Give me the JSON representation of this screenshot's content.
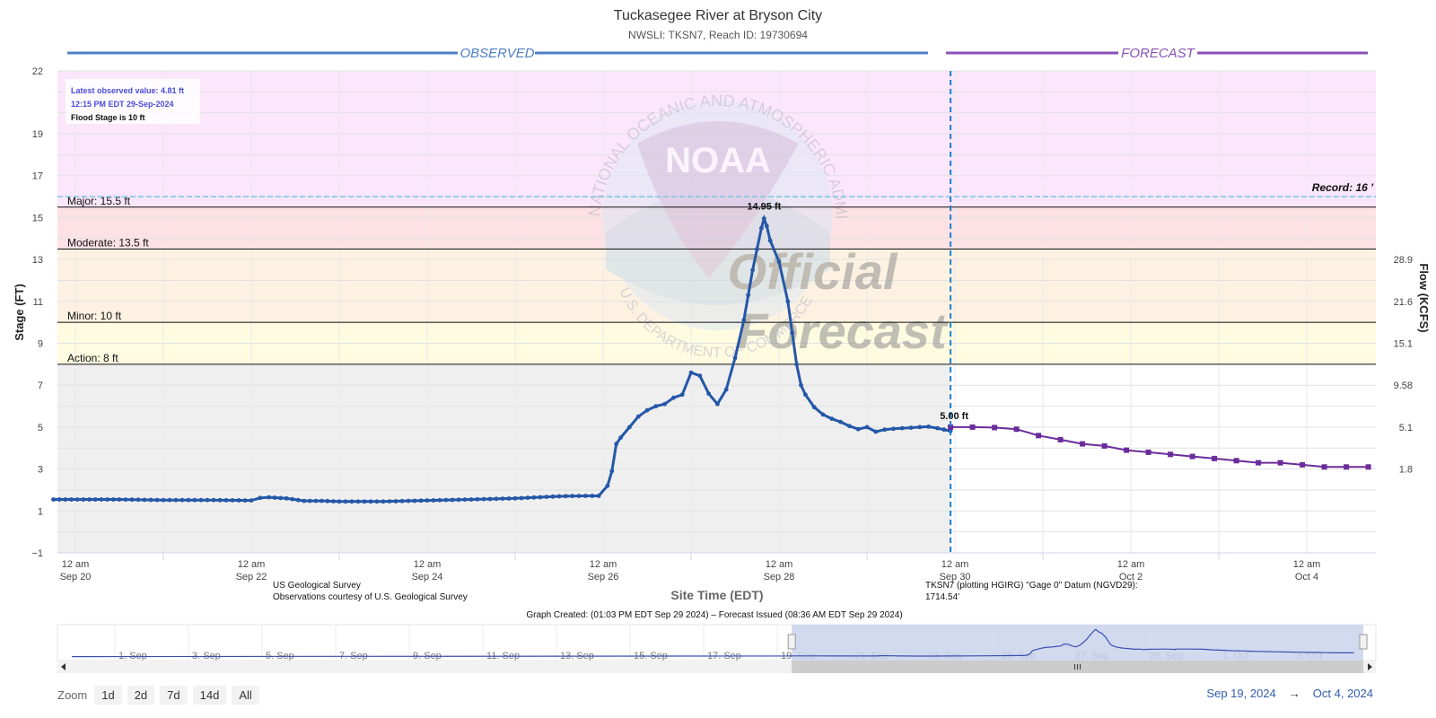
{
  "chart_data": {
    "type": "line",
    "title": "Tuckasegee River at Bryson City",
    "subtitle": "NWSLI: TKSN7, Reach ID: 19730694",
    "section_observed": "OBSERVED",
    "section_forecast": "FORECAST",
    "ylabel": "Stage (FT)",
    "y2label": "Flow (KCFS)",
    "xlabel": "Site Time (EDT)",
    "ylim": [
      -1,
      22
    ],
    "y_ticks": [
      "22",
      "19",
      "17",
      "15",
      "13",
      "11",
      "9",
      "7",
      "5",
      "3",
      "1",
      "−1"
    ],
    "y2_ticks": [
      {
        "stage": 13.0,
        "label": "28.9"
      },
      {
        "stage": 11.0,
        "label": "21.6"
      },
      {
        "stage": 9.0,
        "label": "15.1"
      },
      {
        "stage": 7.0,
        "label": "9.58"
      },
      {
        "stage": 5.0,
        "label": "5.1"
      },
      {
        "stage": 3.0,
        "label": "1.8"
      }
    ],
    "x_ticks": [
      {
        "day": 0,
        "line1": "12 am",
        "line2": "Sep 20"
      },
      {
        "day": 2,
        "line1": "12 am",
        "line2": "Sep 22"
      },
      {
        "day": 4,
        "line1": "12 am",
        "line2": "Sep 24"
      },
      {
        "day": 6,
        "line1": "12 am",
        "line2": "Sep 26"
      },
      {
        "day": 8,
        "line1": "12 am",
        "line2": "Sep 28"
      },
      {
        "day": 10,
        "line1": "12 am",
        "line2": "Sep 30"
      },
      {
        "day": 12,
        "line1": "12 am",
        "line2": "Oct 2"
      },
      {
        "day": 14,
        "line1": "12 am",
        "line2": "Oct 4"
      }
    ],
    "thresholds": [
      {
        "label": "Major: 15.5 ft",
        "value": 15.5
      },
      {
        "label": "Moderate: 13.5 ft",
        "value": 13.5
      },
      {
        "label": "Minor: 10 ft",
        "value": 10
      },
      {
        "label": "Action: 8 ft",
        "value": 8
      }
    ],
    "zones": [
      {
        "from": 16,
        "to": 22,
        "color": "#fbe6fb"
      },
      {
        "from": 15.5,
        "to": 16,
        "color": "#fbe6fb"
      },
      {
        "from": 13.5,
        "to": 15.5,
        "color": "#fde1e5"
      },
      {
        "from": 10,
        "to": 13.5,
        "color": "#fdf2e1"
      },
      {
        "from": 8,
        "to": 10,
        "color": "#fefbe1"
      },
      {
        "from": -1,
        "to": 8,
        "color": "#efefef"
      }
    ],
    "record": {
      "label": "Record: 16 '",
      "value": 16
    },
    "info_box": {
      "latest": "Latest observed value: 4.81 ft",
      "time": "12:15 PM EDT 29-Sep-2024",
      "flood_stage": "Flood Stage is 10 ft"
    },
    "peak_label": "14.95 ft",
    "peak": {
      "day": 7.83,
      "value": 14.95
    },
    "forecast_start_label": "5.00 ft",
    "forecast_start": {
      "day": 9.95,
      "value": 5.0
    },
    "now_day": 9.95,
    "observed_days": [
      -0.25,
      0.5,
      1.0,
      1.5,
      2.0,
      2.1,
      2.2,
      2.4,
      2.6,
      2.8,
      3.0,
      3.5,
      4.0,
      4.5,
      5.0,
      5.5,
      5.8,
      5.95,
      6.05,
      6.1,
      6.15,
      6.2,
      6.3,
      6.4,
      6.5,
      6.6,
      6.7,
      6.8,
      6.9,
      7.0,
      7.1,
      7.2,
      7.3,
      7.4,
      7.5,
      7.6,
      7.65,
      7.7,
      7.75,
      7.8,
      7.83,
      7.86,
      7.9,
      8.0,
      8.1,
      8.15,
      8.2,
      8.25,
      8.3,
      8.4,
      8.5,
      8.6,
      8.7,
      8.8,
      8.9,
      9.0,
      9.1,
      9.2,
      9.3,
      9.4,
      9.5,
      9.6,
      9.7,
      9.8,
      9.95
    ],
    "observed_values": [
      1.55,
      1.55,
      1.52,
      1.52,
      1.5,
      1.62,
      1.65,
      1.6,
      1.48,
      1.48,
      1.45,
      1.45,
      1.5,
      1.55,
      1.6,
      1.7,
      1.72,
      1.72,
      2.2,
      2.9,
      4.2,
      4.5,
      5.0,
      5.5,
      5.8,
      6.0,
      6.1,
      6.4,
      6.55,
      7.6,
      7.45,
      6.6,
      6.1,
      6.8,
      8.3,
      10.1,
      11.3,
      12.5,
      13.5,
      14.5,
      14.95,
      14.6,
      13.9,
      12.9,
      11.0,
      9.5,
      8.0,
      7.0,
      6.55,
      5.95,
      5.6,
      5.4,
      5.25,
      5.05,
      4.9,
      5.0,
      4.78,
      4.88,
      4.92,
      4.95,
      4.97,
      5.0,
      5.02,
      4.95,
      4.81
    ],
    "forecast_days": [
      9.95,
      10.2,
      10.45,
      10.7,
      10.95,
      11.2,
      11.45,
      11.7,
      11.95,
      12.2,
      12.45,
      12.7,
      12.95,
      13.2,
      13.45,
      13.7,
      13.95,
      14.2,
      14.45,
      14.7
    ],
    "forecast_values": [
      5.0,
      5.0,
      4.98,
      4.9,
      4.6,
      4.4,
      4.2,
      4.1,
      3.9,
      3.8,
      3.7,
      3.6,
      3.5,
      3.4,
      3.3,
      3.3,
      3.2,
      3.1,
      3.1,
      3.1
    ],
    "credit_line1": "US Geological Survey",
    "credit_line2": "Observations courtesy of U.S. Geological Survey",
    "datum_line1": "TKSN7 (plotting HGIRG) \"Gage 0\" Datum (NGVD29):",
    "datum_line2": "1714.54'",
    "graph_created": "Graph Created: (01:03 PM EDT Sep 29 2024) – Forecast Issued (08:36 AM EDT Sep 29 2024)",
    "watermark_noaa": "NOAA",
    "watermark_official": "Official",
    "watermark_forecast": "Forecast",
    "watermark_ring_top": "NATIONAL OCEANIC AND ATMOSPHERIC ADMINISTRATION",
    "watermark_ring_bottom": "U.S. DEPARTMENT OF COMMERCE"
  },
  "navigator": {
    "labels": [
      "1. Sep",
      "3. Sep",
      "5. Sep",
      "7. Sep",
      "9. Sep",
      "11. Sep",
      "13. Sep",
      "15. Sep",
      "17. Sep",
      "19. Sep",
      "21. Sep",
      "23. Sep",
      "25. Sep",
      "27. Sep",
      "29. Sep",
      "1. Oct",
      "3. Oct"
    ],
    "selection_start_index": 9.1
  },
  "zoom": {
    "label": "Zoom",
    "buttons": [
      "1d",
      "2d",
      "7d",
      "14d",
      "All"
    ]
  },
  "range": {
    "from": "Sep 19, 2024",
    "arrow": "→",
    "to": "Oct 4, 2024"
  },
  "colors": {
    "observed": "#2457a8",
    "forecast": "#6a2c9a",
    "observed_header": "#4f7fc4",
    "forecast_header": "#8a52b8",
    "now_line": "#1a7fd0"
  }
}
